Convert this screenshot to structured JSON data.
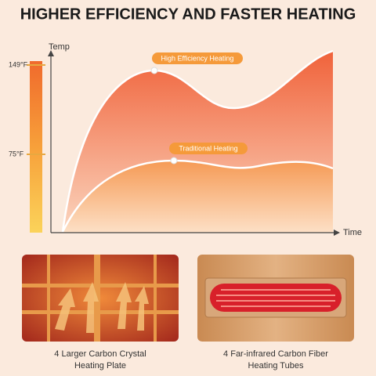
{
  "header": {
    "title": "HIGHER EFFICIENCY AND FASTER HEATING"
  },
  "graph": {
    "y_label": "Temp",
    "x_label": "Time",
    "scale_labels": [
      "149°F",
      "75°F"
    ],
    "curves": [
      {
        "label": "High Efficiency Heating"
      },
      {
        "label": "Traditional Heating"
      }
    ]
  },
  "panels": [
    {
      "caption": [
        "4 Larger Carbon Crystal",
        "Heating Plate"
      ]
    },
    {
      "caption": [
        "4 Far-infrared Carbon Fiber",
        "Heating Tubes"
      ]
    }
  ]
}
